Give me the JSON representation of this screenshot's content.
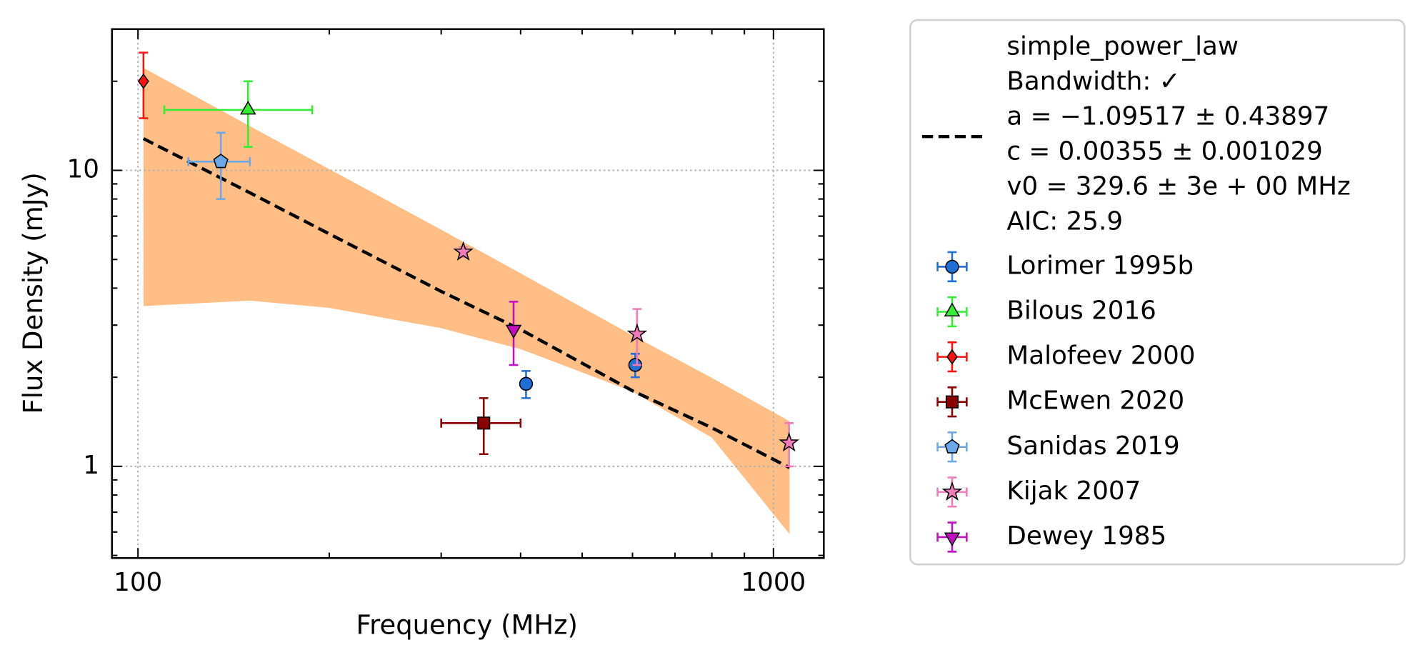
{
  "chart_data": {
    "type": "scatter",
    "xlabel": "Frequency (MHz)",
    "ylabel": "Flux Density (mJy)",
    "xscale": "log",
    "yscale": "log",
    "xlim": [
      91,
      1200
    ],
    "ylim": [
      0.49,
      30
    ],
    "xticks": [
      100,
      1000
    ],
    "yticks": [
      1,
      10
    ],
    "xminorticks": [
      200,
      300,
      400,
      500,
      600,
      700,
      800,
      900
    ],
    "yminorticks": [
      0.5,
      0.6,
      0.7,
      0.8,
      0.9,
      2,
      3,
      4,
      5,
      6,
      7,
      8,
      9,
      20,
      30
    ],
    "grid": true,
    "legend": "right",
    "fit": {
      "label": [
        "simple_power_law",
        "Bandwidth: ✓",
        "a = −1.09517 ± 0.43897",
        "c = 0.00355 ± 0.001029",
        "v0 = 329.6 ± 3e + 00 MHz",
        "AIC: 25.9"
      ],
      "color": "#000000",
      "band_color": "#ffbe86",
      "x": [
        102,
        150,
        200,
        300,
        400,
        600,
        800,
        1060
      ],
      "values": [
        12.8,
        8.4,
        6.1,
        3.9,
        2.9,
        1.8,
        1.35,
        0.99
      ],
      "upper": [
        22.2,
        14.1,
        10.1,
        6.3,
        4.49,
        2.77,
        1.99,
        1.42
      ],
      "lower": [
        3.48,
        3.63,
        3.43,
        2.93,
        2.49,
        1.79,
        1.25,
        0.59
      ]
    },
    "series": [
      {
        "name": "Lorimer 1995b",
        "color": "#1f6fd6",
        "marker": "circle",
        "x": [
          408,
          606
        ],
        "values": [
          1.9,
          2.2
        ],
        "errors": [
          0.2,
          0.2
        ]
      },
      {
        "name": "Bilous 2016",
        "color": "#33ee33",
        "marker": "triangle-up",
        "x": [
          149
        ],
        "values": [
          16
        ],
        "errors": [
          4
        ],
        "xerrors": [
          39
        ]
      },
      {
        "name": "Malofeev 2000",
        "color": "#ff1010",
        "marker": "diamond",
        "x": [
          102
        ],
        "values": [
          20
        ],
        "errors": [
          5
        ]
      },
      {
        "name": "McEwen 2020",
        "color": "#8b0000",
        "marker": "square",
        "x": [
          350
        ],
        "values": [
          1.4
        ],
        "errors": [
          0.3
        ],
        "xerrors": [
          50
        ]
      },
      {
        "name": "Sanidas 2019",
        "color": "#6aa8e8",
        "marker": "pentagon",
        "x": [
          135
        ],
        "values": [
          10.7
        ],
        "errors": [
          2.7
        ],
        "xerrors": [
          15
        ]
      },
      {
        "name": "Kijak 2007",
        "color": "#f07ab8",
        "marker": "star",
        "x": [
          325,
          610,
          1058
        ],
        "values": [
          5.3,
          2.8,
          1.2
        ],
        "errors": [
          0.2,
          0.6,
          0.2
        ]
      },
      {
        "name": "Dewey 1985",
        "color": "#c010c0",
        "marker": "triangle-down",
        "x": [
          390
        ],
        "values": [
          2.9
        ],
        "errors": [
          0.7
        ]
      }
    ]
  }
}
